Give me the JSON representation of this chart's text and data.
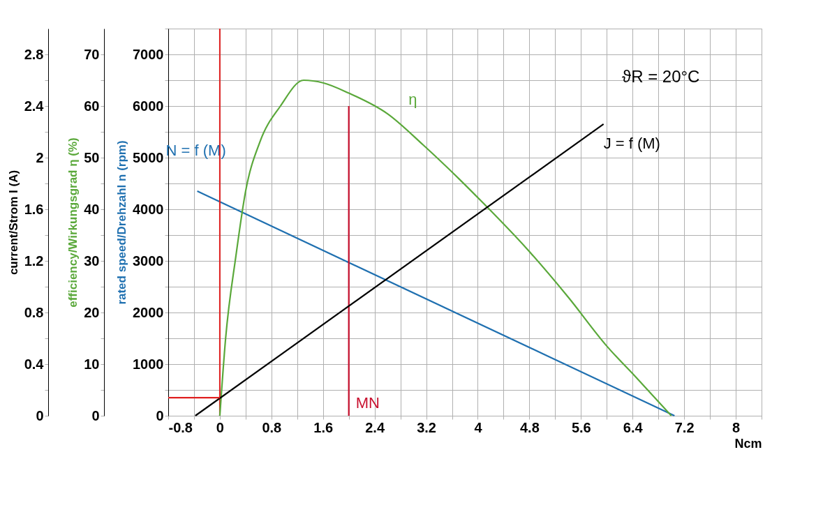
{
  "chart_data": {
    "type": "line",
    "xlabel": "Ncm",
    "ylabel": "rated speed/Drehzahl n (rpm)",
    "y2label": "efficiency/Wirkungsgrad η (%)",
    "y3label": "current/Strom I (A)",
    "xlim": [
      -0.8,
      8.4
    ],
    "xticks": [
      -0.8,
      {
        "value": -0.4,
        "label": null
      },
      0,
      {
        "value": 0.4,
        "label": null
      },
      0.8,
      {
        "value": 1.2,
        "label": null
      },
      1.6,
      {
        "value": 2.0,
        "label": null
      },
      2.4,
      {
        "value": 2.8,
        "label": null
      },
      3.2,
      {
        "value": 3.6,
        "label": null
      },
      4,
      {
        "value": 4.4,
        "label": null
      },
      4.8,
      {
        "value": 5.2,
        "label": null
      },
      5.6,
      {
        "value": 6.0,
        "label": null
      },
      6.4,
      {
        "value": 6.8,
        "label": null
      },
      7.2,
      {
        "value": 7.6,
        "label": null
      },
      8,
      {
        "value": 8.4,
        "label": null
      }
    ],
    "ylim": [
      0,
      7500
    ],
    "yticks": [
      0,
      {
        "value": 500,
        "label": null
      },
      1000,
      {
        "value": 1500,
        "label": null
      },
      2000,
      {
        "value": 2500,
        "label": null
      },
      3000,
      {
        "value": 3500,
        "label": null
      },
      4000,
      {
        "value": 4500,
        "label": null
      },
      5000,
      {
        "value": 5500,
        "label": null
      },
      6000,
      {
        "value": 6500,
        "label": null
      },
      7000,
      {
        "value": 7500,
        "label": null
      }
    ],
    "y2lim": [
      0,
      75
    ],
    "y2ticks": [
      0,
      {
        "value": 5,
        "label": null
      },
      10,
      {
        "value": 15,
        "label": null
      },
      20,
      {
        "value": 25,
        "label": null
      },
      30,
      {
        "value": 35,
        "label": null
      },
      40,
      {
        "value": 45,
        "label": null
      },
      50,
      {
        "value": 55,
        "label": null
      },
      60,
      {
        "value": 65,
        "label": null
      },
      70
    ],
    "y3lim": [
      0,
      3.0
    ],
    "y3ticks": [
      0,
      {
        "value": 0.2,
        "label": null
      },
      0.4,
      {
        "value": 0.6,
        "label": null
      },
      0.8,
      {
        "value": 1.0,
        "label": null
      },
      1.2,
      {
        "value": 1.4,
        "label": null
      },
      1.6,
      {
        "value": 1.8,
        "label": null
      },
      2,
      {
        "value": 2.2,
        "label": null
      },
      2.4,
      {
        "value": 2.6,
        "label": null
      },
      2.8
    ],
    "grid": true,
    "marker": "none",
    "line_style": "solid",
    "series": [
      {
        "name": "N = f (M)",
        "color": "#1f70b0",
        "axis": "y",
        "x": [
          -0.35,
          7.05
        ],
        "values": [
          4350,
          0
        ]
      },
      {
        "name": "J = f (M)",
        "color": "#000000",
        "axis": "y3",
        "x": [
          -0.38,
          5.95
        ],
        "values": [
          0,
          2.26
        ]
      },
      {
        "name": "η",
        "color": "#5aa83a",
        "axis": "y2",
        "x": [
          0,
          0.09,
          0.25,
          0.4,
          0.62,
          0.94,
          1.3,
          1.6,
          2.0,
          2.6,
          3.15,
          3.7,
          4.1,
          4.75,
          5.4,
          6.0,
          6.45,
          7.0
        ],
        "values": [
          0,
          15,
          31,
          43.5,
          53,
          60,
          65,
          64.5,
          62.5,
          58.5,
          52.5,
          46,
          41,
          32.5,
          23,
          13.5,
          7.5,
          0
        ]
      },
      {
        "name": "MN",
        "color": "#c8102e",
        "axis": "y",
        "x": [
          2.0,
          2.0
        ],
        "values": [
          0,
          6000
        ]
      },
      {
        "color": "#e02020",
        "axis": "y3",
        "x": [
          -0.8,
          0
        ],
        "values": [
          0.14,
          0.14
        ]
      }
    ],
    "ref_lines": [
      {
        "axis": "x",
        "value": 0,
        "color": "#e02020"
      }
    ],
    "annotations": [
      "ϑR = 20°C"
    ]
  }
}
